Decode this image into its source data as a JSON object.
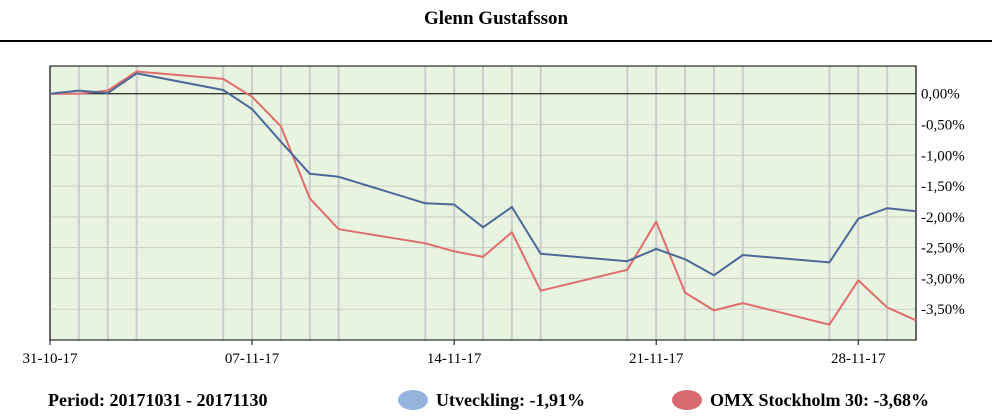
{
  "title": "Glenn Gustafsson",
  "footer": {
    "period": "Period: 20171031 - 20171130",
    "legend_1": "Utveckling: -1,91%",
    "legend_2": "OMX Stockholm 30: -3,68%"
  },
  "colors": {
    "series_1": "#4c6898",
    "series_2": "#e06c6c",
    "legend_1": "#94b4dc",
    "legend_2": "#d86a72",
    "plot_bg": "#e8f4e0",
    "grid": "#cccccc"
  },
  "chart_data": {
    "type": "line",
    "title": "Glenn Gustafsson",
    "x_start": "2017-10-31",
    "x_end": "2017-11-30",
    "x_ticks": [
      {
        "date": "2017-10-31",
        "label": "31-10-17"
      },
      {
        "date": "2017-11-07",
        "label": "07-11-17"
      },
      {
        "date": "2017-11-14",
        "label": "14-11-17"
      },
      {
        "date": "2017-11-21",
        "label": "21-11-17"
      },
      {
        "date": "2017-11-28",
        "label": "28-11-17"
      }
    ],
    "y_ticks": [
      {
        "value": 0.0,
        "label": "0,00%"
      },
      {
        "value": -0.5,
        "label": "-0,50%"
      },
      {
        "value": -1.0,
        "label": "-1,00%"
      },
      {
        "value": -1.5,
        "label": "-1,50%"
      },
      {
        "value": -2.0,
        "label": "-2,00%"
      },
      {
        "value": -2.5,
        "label": "-2,50%"
      },
      {
        "value": -3.0,
        "label": "-3,00%"
      },
      {
        "value": -3.5,
        "label": "-3,50%"
      }
    ],
    "ylim": [
      -4.0,
      0.45
    ],
    "grid": true,
    "series": [
      {
        "name": "Utveckling",
        "points": [
          [
            "2017-10-31",
            0.0
          ],
          [
            "2017-11-01",
            0.05
          ],
          [
            "2017-11-02",
            0.01
          ],
          [
            "2017-11-03",
            0.33
          ],
          [
            "2017-11-06",
            0.06
          ],
          [
            "2017-11-07",
            -0.25
          ],
          [
            "2017-11-08",
            -0.78
          ],
          [
            "2017-11-09",
            -1.3
          ],
          [
            "2017-11-10",
            -1.35
          ],
          [
            "2017-11-13",
            -1.78
          ],
          [
            "2017-11-14",
            -1.8
          ],
          [
            "2017-11-15",
            -2.17
          ],
          [
            "2017-11-16",
            -1.84
          ],
          [
            "2017-11-17",
            -2.6
          ],
          [
            "2017-11-20",
            -2.72
          ],
          [
            "2017-11-21",
            -2.52
          ],
          [
            "2017-11-22",
            -2.69
          ],
          [
            "2017-11-23",
            -2.95
          ],
          [
            "2017-11-24",
            -2.62
          ],
          [
            "2017-11-27",
            -2.74
          ],
          [
            "2017-11-28",
            -2.03
          ],
          [
            "2017-11-29",
            -1.86
          ],
          [
            "2017-11-30",
            -1.91
          ]
        ]
      },
      {
        "name": "OMX Stockholm 30",
        "points": [
          [
            "2017-10-31",
            0.0
          ],
          [
            "2017-11-01",
            0.0
          ],
          [
            "2017-11-02",
            0.05
          ],
          [
            "2017-11-03",
            0.36
          ],
          [
            "2017-11-06",
            0.24
          ],
          [
            "2017-11-07",
            -0.05
          ],
          [
            "2017-11-08",
            -0.53
          ],
          [
            "2017-11-09",
            -1.7
          ],
          [
            "2017-11-10",
            -2.2
          ],
          [
            "2017-11-13",
            -2.43
          ],
          [
            "2017-11-14",
            -2.56
          ],
          [
            "2017-11-15",
            -2.65
          ],
          [
            "2017-11-16",
            -2.25
          ],
          [
            "2017-11-17",
            -3.2
          ],
          [
            "2017-11-20",
            -2.86
          ],
          [
            "2017-11-21",
            -2.08
          ],
          [
            "2017-11-22",
            -3.23
          ],
          [
            "2017-11-23",
            -3.52
          ],
          [
            "2017-11-24",
            -3.4
          ],
          [
            "2017-11-27",
            -3.75
          ],
          [
            "2017-11-28",
            -3.03
          ],
          [
            "2017-11-29",
            -3.47
          ],
          [
            "2017-11-30",
            -3.68
          ]
        ]
      }
    ]
  }
}
